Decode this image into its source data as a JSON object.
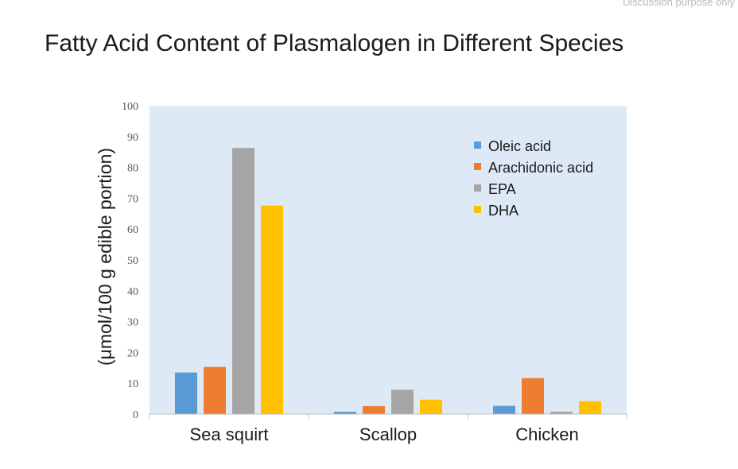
{
  "watermark": "Discussion purpose only",
  "colors": {
    "plot_background": "#dde9f5",
    "axis": "#c0c0c0"
  },
  "chart_data": {
    "type": "bar",
    "title": "Fatty Acid Content of Plasmalogen in Different Species",
    "ylabel": "(μmol/100 g edible portion)",
    "xlabel": "",
    "ylim": [
      0,
      100
    ],
    "yticks": [
      0,
      10,
      20,
      30,
      40,
      50,
      60,
      70,
      80,
      90,
      100
    ],
    "categories": [
      "Sea squirt",
      "Scallop",
      "Chicken"
    ],
    "legend_position": "top-right",
    "grid": false,
    "series": [
      {
        "name": "Oleic acid",
        "color": "#5b9bd5",
        "values": [
          13.5,
          0.8,
          2.7
        ]
      },
      {
        "name": "Arachidonic acid",
        "color": "#ed7d31",
        "values": [
          15.3,
          2.6,
          11.7
        ]
      },
      {
        "name": "EPA",
        "color": "#a5a5a5",
        "values": [
          86.3,
          7.9,
          0.8
        ]
      },
      {
        "name": "DHA",
        "color": "#ffc000",
        "values": [
          67.6,
          4.7,
          4.2
        ]
      }
    ]
  }
}
